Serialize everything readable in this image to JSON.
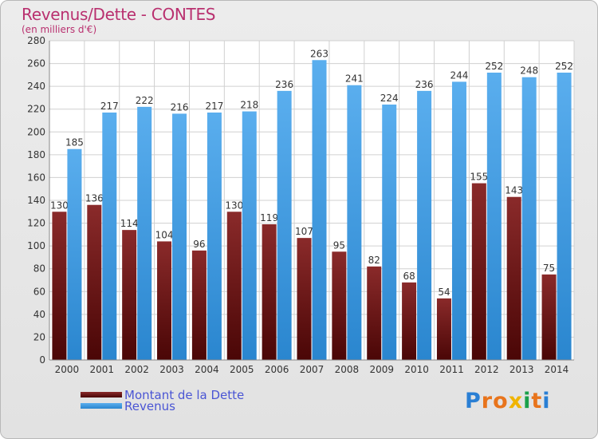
{
  "title": "Revenus/Dette - CONTES",
  "subtitle": "(en milliers d'€)",
  "logo": "Proxiti",
  "colors": {
    "debt": "#6e1414",
    "revenue": "#3a9be0",
    "title": "#b9306f",
    "legend_text": "#4a55d4"
  },
  "chart_data": {
    "type": "bar",
    "categories": [
      "2000",
      "2001",
      "2002",
      "2003",
      "2004",
      "2005",
      "2006",
      "2007",
      "2008",
      "2009",
      "2010",
      "2011",
      "2012",
      "2013",
      "2014"
    ],
    "series": [
      {
        "name": "Montant de la Dette",
        "values": [
          130,
          136,
          114,
          104,
          96,
          130,
          119,
          107,
          95,
          82,
          68,
          54,
          155,
          143,
          75
        ]
      },
      {
        "name": "Revenus",
        "values": [
          185,
          217,
          222,
          216,
          217,
          218,
          236,
          263,
          241,
          224,
          236,
          244,
          252,
          248,
          252
        ]
      }
    ],
    "ylim": [
      0,
      280
    ],
    "yticks": [
      0,
      20,
      40,
      60,
      80,
      100,
      120,
      140,
      160,
      180,
      200,
      220,
      240,
      260,
      280
    ],
    "grid": true,
    "legend_position": "bottom-left"
  }
}
